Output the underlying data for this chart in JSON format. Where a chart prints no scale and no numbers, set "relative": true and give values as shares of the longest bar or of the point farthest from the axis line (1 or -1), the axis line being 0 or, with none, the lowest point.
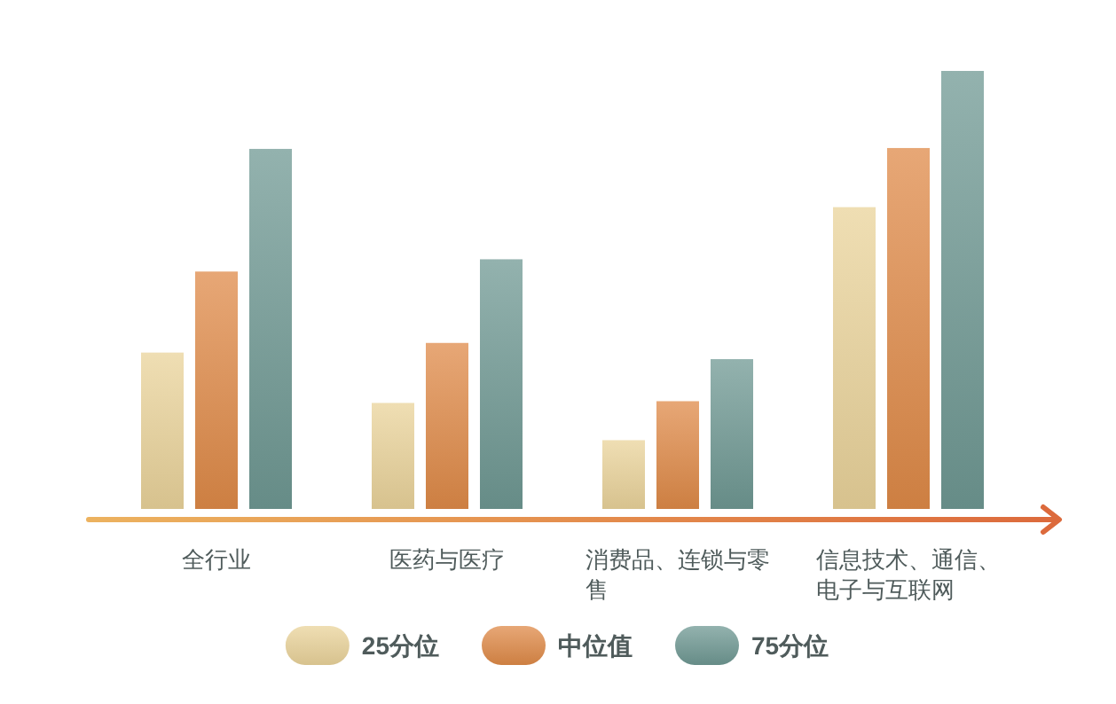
{
  "chart_data": {
    "type": "bar",
    "relative": true,
    "categories": [
      "全行业",
      "医药与医疗",
      "消费品、连锁与零售",
      "信息技术、通信、电子与互联网"
    ],
    "series": [
      {
        "name": "25分位",
        "color": "#ead39a",
        "values": [
          0.357,
          0.242,
          0.157,
          0.689
        ]
      },
      {
        "name": "中位值",
        "color": "#df8a48",
        "values": [
          0.542,
          0.379,
          0.246,
          0.824
        ]
      },
      {
        "name": "75分位",
        "color": "#6f9893",
        "values": [
          0.822,
          0.57,
          0.342,
          1
        ]
      }
    ],
    "legend": "bottom"
  }
}
